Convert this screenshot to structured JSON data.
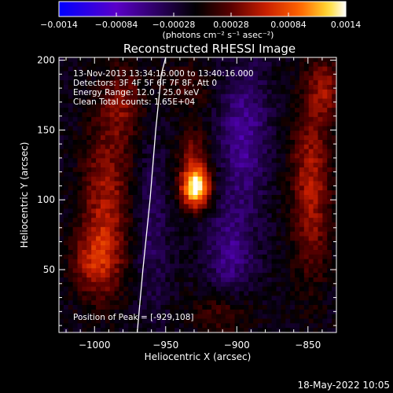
{
  "chart_data": {
    "type": "heatmap",
    "title": "Reconstructed RHESSI Image",
    "xlabel": "Heliocentric X (arcsec)",
    "ylabel": "Heliocentric Y (arcsec)",
    "xlim": [
      -1025,
      -830
    ],
    "ylim": [
      5,
      202
    ],
    "x_ticks": [
      -1000,
      -950,
      -900,
      -850
    ],
    "y_ticks": [
      50,
      100,
      150,
      200
    ],
    "x_tick_labels": [
      "−1000",
      "−950",
      "−900",
      "−850"
    ],
    "y_tick_labels": [
      "50",
      "100",
      "150",
      "200"
    ],
    "colorbar": {
      "range": [
        -0.0014,
        0.0014
      ],
      "ticks": [
        "−0.0014",
        "−0.00084",
        "−0.00028",
        "0.00028",
        "0.00084",
        "0.0014"
      ],
      "unit_label": "(photons cm⁻² s⁻¹ asec⁻²)",
      "colormap": [
        "#0000ff",
        "#5a00c8",
        "#000000",
        "#5a0000",
        "#c81e00",
        "#ff6400",
        "#ffdc32",
        "#ffffff"
      ]
    },
    "info_lines": [
      "13-Nov-2013 13:34:16.000 to 13:40:16.000",
      "Detectors: 3F 4F 5F 6F 7F 8F, Att 0",
      "Energy Range: 12.0 - 25.0 keV",
      "Clean     Total counts: 1.65E+04"
    ],
    "peak_label": "Position of Peak = [-929,108]",
    "peak": {
      "x": -929,
      "y": 108
    },
    "limb_curve": {
      "x": [
        -970,
        -966,
        -961,
        -957,
        -953,
        -950
      ],
      "y": [
        5,
        50,
        100,
        150,
        190,
        202
      ]
    },
    "sources": [
      {
        "x": -929,
        "y": 108,
        "sigma_x": 7,
        "sigma_y": 10,
        "amp": 1.0
      },
      {
        "x": -930,
        "y": 130,
        "sigma_x": 8,
        "sigma_y": 14,
        "amp": 0.35
      },
      {
        "x": -992,
        "y": 100,
        "sigma_x": 12,
        "sigma_y": 40,
        "amp": 0.42
      },
      {
        "x": -1000,
        "y": 55,
        "sigma_x": 12,
        "sigma_y": 18,
        "amp": 0.38
      },
      {
        "x": -980,
        "y": 170,
        "sigma_x": 10,
        "sigma_y": 20,
        "amp": 0.3
      },
      {
        "x": -848,
        "y": 110,
        "sigma_x": 10,
        "sigma_y": 45,
        "amp": 0.45
      },
      {
        "x": -838,
        "y": 180,
        "sigma_x": 8,
        "sigma_y": 15,
        "amp": 0.35
      },
      {
        "x": -910,
        "y": 20,
        "sigma_x": 15,
        "sigma_y": 12,
        "amp": 0.25
      },
      {
        "x": -935,
        "y": 180,
        "sigma_x": 12,
        "sigma_y": 12,
        "amp": 0.2
      },
      {
        "x": -895,
        "y": 145,
        "sigma_x": 12,
        "sigma_y": 35,
        "amp": -0.35
      },
      {
        "x": -905,
        "y": 60,
        "sigma_x": 12,
        "sigma_y": 25,
        "amp": -0.3
      },
      {
        "x": -960,
        "y": 80,
        "sigma_x": 8,
        "sigma_y": 40,
        "amp": -0.2
      }
    ]
  },
  "footer": {
    "date": "18-May-2022 10:05"
  }
}
